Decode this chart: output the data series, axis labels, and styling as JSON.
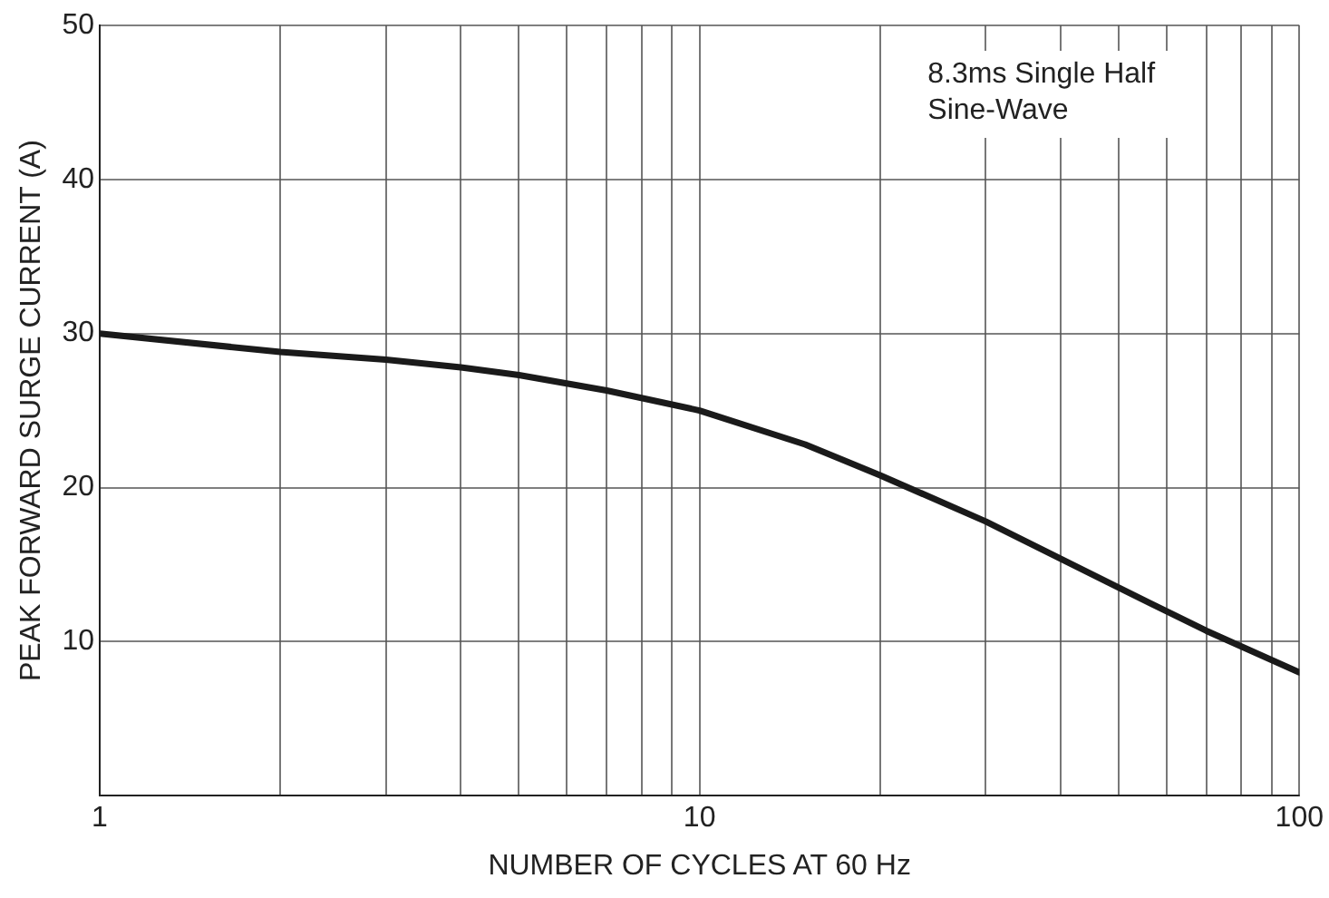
{
  "chart_data": {
    "type": "line",
    "xlabel": "NUMBER OF CYCLES AT 60 Hz",
    "ylabel": "PEAK FORWARD SURGE CURRENT (A)",
    "annotations": [
      "8.3ms Single Half\nSine-Wave"
    ],
    "log": "x",
    "grid": true,
    "legend": false,
    "marker": "none",
    "line_style": "solid",
    "xlim": [
      1,
      100
    ],
    "xticks": [
      1,
      {
        "value": 2,
        "label": null
      },
      {
        "value": 3,
        "label": null
      },
      {
        "value": 4,
        "label": null
      },
      {
        "value": 5,
        "label": null
      },
      {
        "value": 6,
        "label": null
      },
      {
        "value": 7,
        "label": null
      },
      {
        "value": 8,
        "label": null
      },
      {
        "value": 9,
        "label": null
      },
      10,
      {
        "value": 20,
        "label": null
      },
      {
        "value": 30,
        "label": null
      },
      {
        "value": 40,
        "label": null
      },
      {
        "value": 50,
        "label": null
      },
      {
        "value": 60,
        "label": null
      },
      {
        "value": 70,
        "label": null
      },
      {
        "value": 80,
        "label": null
      },
      {
        "value": 90,
        "label": null
      },
      100
    ],
    "ylim": [
      0,
      50
    ],
    "yticks": [
      {
        "value": 0,
        "label": null
      },
      10,
      20,
      30,
      40,
      50
    ],
    "series": [
      {
        "color": "#1a1a1a",
        "x": [
          1,
          2,
          3,
          4,
          5,
          7,
          10,
          15,
          20,
          30,
          50,
          70,
          100
        ],
        "values": [
          30,
          28.8,
          28.3,
          27.8,
          27.3,
          26.3,
          25,
          22.8,
          20.8,
          17.8,
          13.5,
          10.7,
          8
        ]
      }
    ]
  }
}
